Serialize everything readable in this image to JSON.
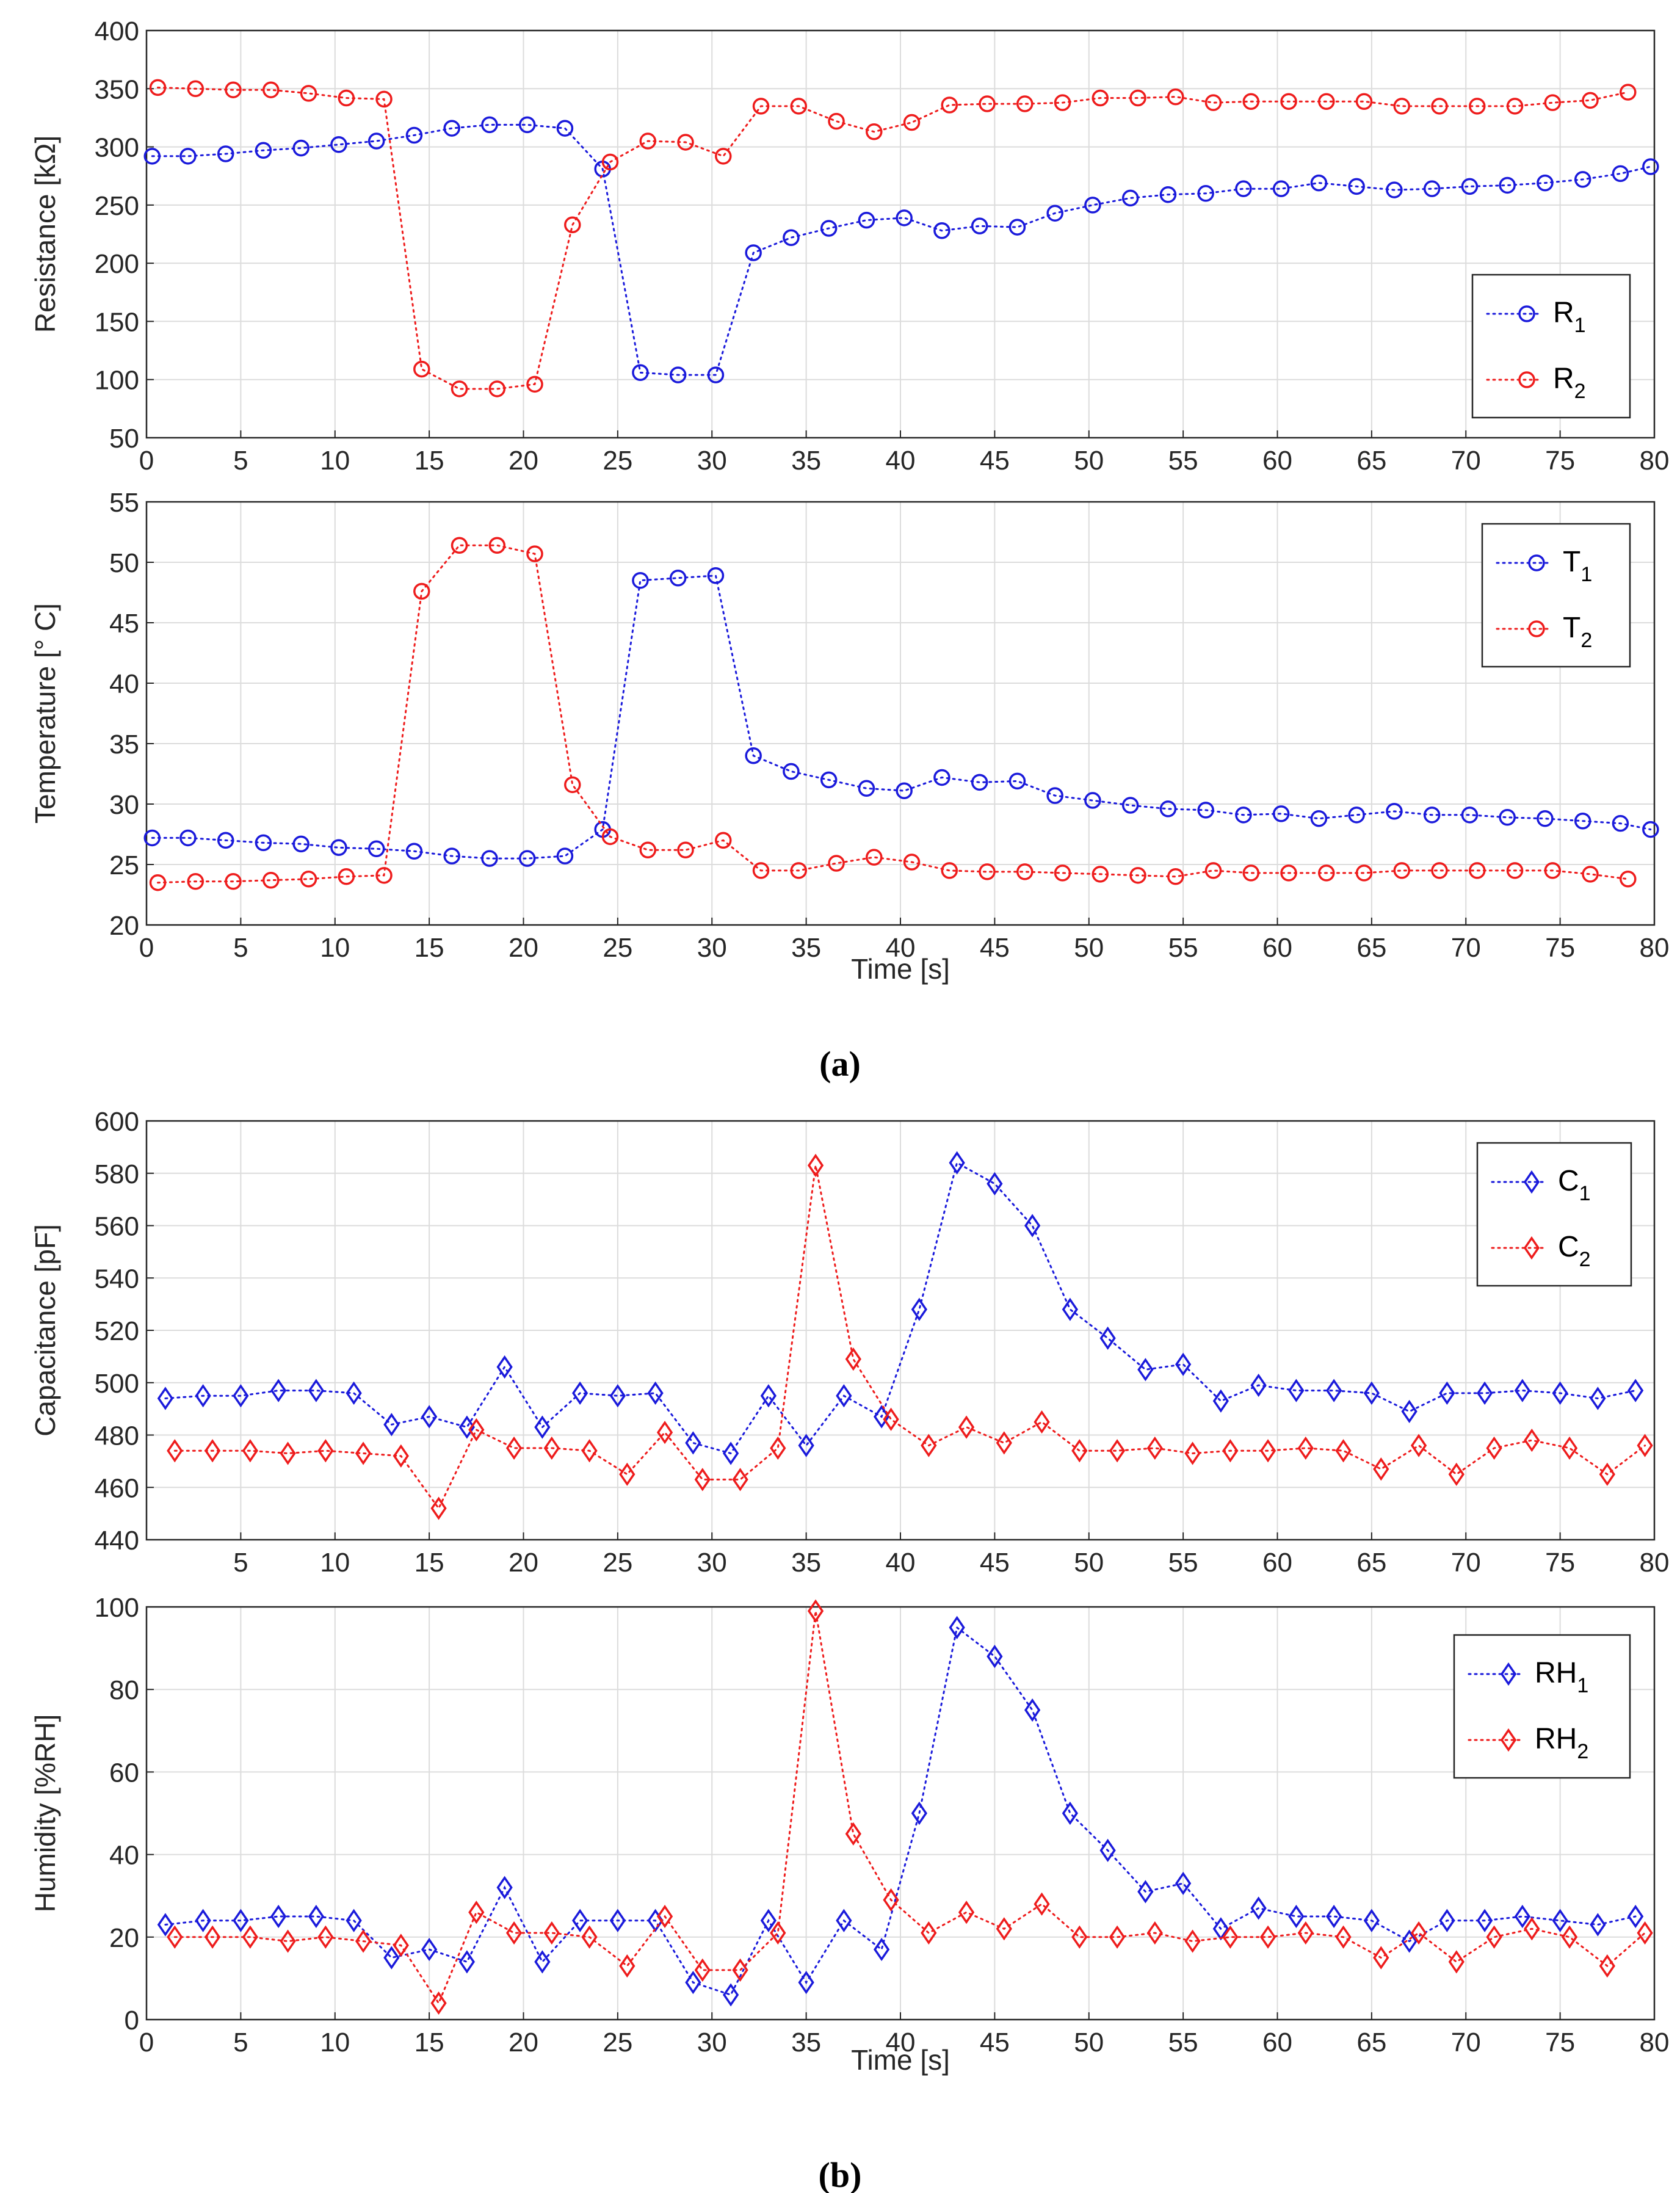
{
  "figure": {
    "label_a": "(a)",
    "label_b": "(b)"
  },
  "colors": {
    "series1": "#1a1adb",
    "series2": "#ee1c1c"
  },
  "chart_data": [
    {
      "id": "resistance",
      "type": "line",
      "xlabel": "",
      "ylabel": "Resistance [kΩ]",
      "xlim": [
        0,
        80
      ],
      "ylim": [
        50,
        400
      ],
      "xticks": [
        0,
        5,
        10,
        15,
        20,
        25,
        30,
        35,
        40,
        45,
        50,
        55,
        60,
        65,
        70,
        75,
        80
      ],
      "yticks": [
        50,
        100,
        150,
        200,
        250,
        300,
        350,
        400
      ],
      "grid": true,
      "legend_position": "right-lower",
      "marker": "circle",
      "series": [
        {
          "name": "R",
          "sub": "1",
          "color": "#1a1adb",
          "x": [
            0.3,
            2.2,
            4.2,
            6.2,
            8.2,
            10.2,
            12.2,
            14.2,
            16.2,
            18.2,
            20.2,
            22.2,
            24.2,
            26.2,
            28.2,
            30.2,
            32.2,
            34.2,
            36.2,
            38.2,
            40.2,
            42.2,
            44.2,
            46.2,
            48.2,
            50.2,
            52.2,
            54.2,
            56.2,
            58.2,
            60.2,
            62.2,
            64.2,
            66.2,
            68.2,
            70.2,
            72.2,
            74.2,
            76.2,
            78.2,
            79.8
          ],
          "y": [
            292,
            292,
            294,
            297,
            299,
            302,
            305,
            310,
            316,
            319,
            319,
            316,
            281,
            106,
            104,
            104,
            209,
            222,
            230,
            237,
            239,
            228,
            232,
            231,
            243,
            250,
            256,
            259,
            260,
            264,
            264,
            269,
            266,
            263,
            264,
            266,
            267,
            269,
            272,
            277,
            283
          ]
        },
        {
          "name": "R",
          "sub": "2",
          "color": "#ee1c1c",
          "x": [
            0.6,
            2.6,
            4.6,
            6.6,
            8.6,
            10.6,
            12.6,
            14.6,
            16.6,
            18.6,
            20.6,
            22.6,
            24.6,
            26.6,
            28.6,
            30.6,
            32.6,
            34.6,
            36.6,
            38.6,
            40.6,
            42.6,
            44.6,
            46.6,
            48.6,
            50.6,
            52.6,
            54.6,
            56.6,
            58.6,
            60.6,
            62.6,
            64.6,
            66.6,
            68.6,
            70.6,
            72.6,
            74.6,
            76.6,
            78.6
          ],
          "y": [
            351,
            350,
            349,
            349,
            346,
            342,
            341,
            109,
            92,
            92,
            96,
            233,
            287,
            305,
            304,
            292,
            335,
            335,
            322,
            313,
            321,
            336,
            337,
            337,
            338,
            342,
            342,
            343,
            338,
            339,
            339,
            339,
            339,
            335,
            335,
            335,
            335,
            338,
            340,
            347
          ]
        }
      ]
    },
    {
      "id": "temperature",
      "type": "line",
      "xlabel": "Time [s]",
      "ylabel": "Temperature [° C]",
      "xlim": [
        0,
        80
      ],
      "ylim": [
        20,
        55
      ],
      "xticks": [
        0,
        5,
        10,
        15,
        20,
        25,
        30,
        35,
        40,
        45,
        50,
        55,
        60,
        65,
        70,
        75,
        80
      ],
      "yticks": [
        20,
        25,
        30,
        35,
        40,
        45,
        50,
        55
      ],
      "grid": true,
      "legend_position": "top-right",
      "marker": "circle",
      "series": [
        {
          "name": "T",
          "sub": "1",
          "color": "#1a1adb",
          "x": [
            0.3,
            2.2,
            4.2,
            6.2,
            8.2,
            10.2,
            12.2,
            14.2,
            16.2,
            18.2,
            20.2,
            22.2,
            24.2,
            26.2,
            28.2,
            30.2,
            32.2,
            34.2,
            36.2,
            38.2,
            40.2,
            42.2,
            44.2,
            46.2,
            48.2,
            50.2,
            52.2,
            54.2,
            56.2,
            58.2,
            60.2,
            62.2,
            64.2,
            66.2,
            68.2,
            70.2,
            72.2,
            74.2,
            76.2,
            78.2,
            79.8
          ],
          "y": [
            27.2,
            27.2,
            27.0,
            26.8,
            26.7,
            26.4,
            26.3,
            26.1,
            25.7,
            25.5,
            25.5,
            25.7,
            27.9,
            48.5,
            48.7,
            48.9,
            34.0,
            32.7,
            32.0,
            31.3,
            31.1,
            32.2,
            31.8,
            31.9,
            30.7,
            30.3,
            29.9,
            29.6,
            29.5,
            29.1,
            29.2,
            28.8,
            29.1,
            29.4,
            29.1,
            29.1,
            28.9,
            28.8,
            28.6,
            28.4,
            27.9
          ]
        },
        {
          "name": "T",
          "sub": "2",
          "color": "#ee1c1c",
          "x": [
            0.6,
            2.6,
            4.6,
            6.6,
            8.6,
            10.6,
            12.6,
            14.6,
            16.6,
            18.6,
            20.6,
            22.6,
            24.6,
            26.6,
            28.6,
            30.6,
            32.6,
            34.6,
            36.6,
            38.6,
            40.6,
            42.6,
            44.6,
            46.6,
            48.6,
            50.6,
            52.6,
            54.6,
            56.6,
            58.6,
            60.6,
            62.6,
            64.6,
            66.6,
            68.6,
            70.6,
            72.6,
            74.6,
            76.6,
            78.6
          ],
          "y": [
            23.5,
            23.6,
            23.6,
            23.7,
            23.8,
            24.0,
            24.1,
            47.6,
            51.4,
            51.4,
            50.7,
            31.6,
            27.3,
            26.2,
            26.2,
            27.0,
            24.5,
            24.5,
            25.1,
            25.6,
            25.2,
            24.5,
            24.4,
            24.4,
            24.3,
            24.2,
            24.1,
            24.0,
            24.5,
            24.3,
            24.3,
            24.3,
            24.3,
            24.5,
            24.5,
            24.5,
            24.5,
            24.5,
            24.2,
            23.8
          ]
        }
      ]
    },
    {
      "id": "capacitance",
      "type": "line",
      "xlabel": "",
      "ylabel": "Capacitance [pF]",
      "xlim": [
        0,
        80
      ],
      "ylim": [
        440,
        600
      ],
      "xticks": [
        5,
        10,
        15,
        20,
        25,
        30,
        35,
        40,
        45,
        50,
        55,
        60,
        65,
        70,
        75,
        80
      ],
      "yticks": [
        440,
        460,
        480,
        500,
        520,
        540,
        560,
        580,
        600
      ],
      "grid": true,
      "legend_position": "top-right",
      "marker": "diamond",
      "series": [
        {
          "name": "C",
          "sub": "1",
          "color": "#1a1adb",
          "x": [
            1,
            3,
            5,
            7,
            9,
            11,
            13,
            15,
            17,
            19,
            21,
            23,
            25,
            27,
            29,
            31,
            33,
            35,
            37,
            39,
            41,
            43,
            45,
            47,
            49,
            51,
            53,
            55,
            57,
            59,
            61,
            63,
            65,
            67,
            69,
            71,
            73,
            75,
            77,
            79
          ],
          "y": [
            494,
            495,
            495,
            497,
            497,
            496,
            484,
            487,
            483,
            506,
            483,
            496,
            495,
            496,
            477,
            473,
            495,
            476,
            495,
            487,
            528,
            584,
            576,
            560,
            528,
            517,
            505,
            507,
            493,
            499,
            497,
            497,
            496,
            489,
            496,
            496,
            497,
            496,
            494,
            497
          ]
        },
        {
          "name": "C",
          "sub": "2",
          "color": "#ee1c1c",
          "x": [
            1.5,
            3.5,
            5.5,
            7.5,
            9.5,
            11.5,
            13.5,
            15.5,
            17.5,
            19.5,
            21.5,
            23.5,
            25.5,
            27.5,
            29.5,
            31.5,
            33.5,
            35.5,
            37.5,
            39.5,
            41.5,
            43.5,
            45.5,
            47.5,
            49.5,
            51.5,
            53.5,
            55.5,
            57.5,
            59.5,
            61.5,
            63.5,
            65.5,
            67.5,
            69.5,
            71.5,
            73.5,
            75.5,
            77.5,
            79.5
          ],
          "y": [
            474,
            474,
            474,
            473,
            474,
            473,
            472,
            452,
            482,
            475,
            475,
            474,
            465,
            481,
            463,
            463,
            475,
            583,
            509,
            486,
            476,
            483,
            477,
            485,
            474,
            474,
            475,
            473,
            474,
            474,
            475,
            474,
            467,
            476,
            465,
            475,
            478,
            475,
            465,
            476
          ]
        }
      ]
    },
    {
      "id": "humidity",
      "type": "line",
      "xlabel": "Time [s]",
      "ylabel": "Humidity [%RH]",
      "xlim": [
        0,
        80
      ],
      "ylim": [
        0,
        100
      ],
      "xticks": [
        0,
        5,
        10,
        15,
        20,
        25,
        30,
        35,
        40,
        45,
        50,
        55,
        60,
        65,
        70,
        75,
        80
      ],
      "yticks": [
        0,
        20,
        40,
        60,
        80,
        100
      ],
      "grid": true,
      "legend_position": "top-right",
      "marker": "diamond",
      "series": [
        {
          "name": "RH",
          "sub": "1",
          "color": "#1a1adb",
          "x": [
            1,
            3,
            5,
            7,
            9,
            11,
            13,
            15,
            17,
            19,
            21,
            23,
            25,
            27,
            29,
            31,
            33,
            35,
            37,
            39,
            41,
            43,
            45,
            47,
            49,
            51,
            53,
            55,
            57,
            59,
            61,
            63,
            65,
            67,
            69,
            71,
            73,
            75,
            77,
            79
          ],
          "y": [
            23,
            24,
            24,
            25,
            25,
            24,
            15,
            17,
            14,
            32,
            14,
            24,
            24,
            24,
            9,
            6,
            24,
            9,
            24,
            17,
            50,
            95,
            88,
            75,
            50,
            41,
            31,
            33,
            22,
            27,
            25,
            25,
            24,
            19,
            24,
            24,
            25,
            24,
            23,
            25
          ]
        },
        {
          "name": "RH",
          "sub": "2",
          "color": "#ee1c1c",
          "x": [
            1.5,
            3.5,
            5.5,
            7.5,
            9.5,
            11.5,
            13.5,
            15.5,
            17.5,
            19.5,
            21.5,
            23.5,
            25.5,
            27.5,
            29.5,
            31.5,
            33.5,
            35.5,
            37.5,
            39.5,
            41.5,
            43.5,
            45.5,
            47.5,
            49.5,
            51.5,
            53.5,
            55.5,
            57.5,
            59.5,
            61.5,
            63.5,
            65.5,
            67.5,
            69.5,
            71.5,
            73.5,
            75.5,
            77.5,
            79.5
          ],
          "y": [
            20,
            20,
            20,
            19,
            20,
            19,
            18,
            4,
            26,
            21,
            21,
            20,
            13,
            25,
            12,
            12,
            21,
            99,
            45,
            29,
            21,
            26,
            22,
            28,
            20,
            20,
            21,
            19,
            20,
            20,
            21,
            20,
            15,
            21,
            14,
            20,
            22,
            20,
            13,
            21
          ]
        }
      ]
    }
  ]
}
